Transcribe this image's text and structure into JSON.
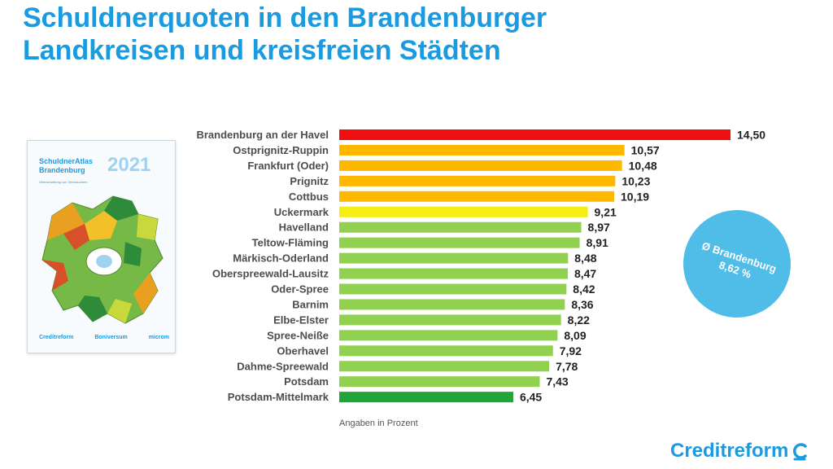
{
  "title": {
    "line1": "Schuldnerquoten in den Brandenburger",
    "line2": "Landkreisen und kreisfreien Städten"
  },
  "chart_data": {
    "type": "bar",
    "orientation": "horizontal",
    "categories": [
      "Brandenburg an der Havel",
      "Ostprignitz-Ruppin",
      "Frankfurt (Oder)",
      "Prignitz",
      "Cottbus",
      "Uckermark",
      "Havelland",
      "Teltow-Fläming",
      "Märkisch-Oderland",
      "Oberspreewald-Lausitz",
      "Oder-Spree",
      "Barnim",
      "Elbe-Elster",
      "Spree-Neiße",
      "Oberhavel",
      "Dahme-Spreewald",
      "Potsdam",
      "Potsdam-Mittelmark"
    ],
    "values": [
      14.5,
      10.57,
      10.48,
      10.23,
      10.19,
      9.21,
      8.97,
      8.91,
      8.48,
      8.47,
      8.42,
      8.36,
      8.22,
      8.09,
      7.92,
      7.78,
      7.43,
      6.45
    ],
    "value_labels": [
      "14,50",
      "10,57",
      "10,48",
      "10,23",
      "10,19",
      "9,21",
      "8,97",
      "8,91",
      "8,48",
      "8,47",
      "8,42",
      "8,36",
      "8,22",
      "8,09",
      "7,92",
      "7,78",
      "7,43",
      "6,45"
    ],
    "colors": [
      "#ee1010",
      "#ffb800",
      "#ffb800",
      "#ffb800",
      "#ffb800",
      "#f5ee12",
      "#92d050",
      "#92d050",
      "#92d050",
      "#92d050",
      "#92d050",
      "#92d050",
      "#92d050",
      "#92d050",
      "#92d050",
      "#92d050",
      "#92d050",
      "#21a53b"
    ],
    "xlim": [
      0,
      14.5
    ],
    "note": "Angaben in Prozent",
    "average_label": "Ø Brandenburg",
    "average_value": "8,62 %"
  },
  "cover": {
    "title_line1": "SchuldnerAtlas",
    "title_line2": "Brandenburg",
    "year": "2021",
    "subtitle": "Überschuldung von Verbrauchern",
    "logos": [
      "Creditreform",
      "Boniversum",
      "microm"
    ]
  },
  "brand": {
    "name": "Creditreform",
    "color": "#1a9be0"
  }
}
